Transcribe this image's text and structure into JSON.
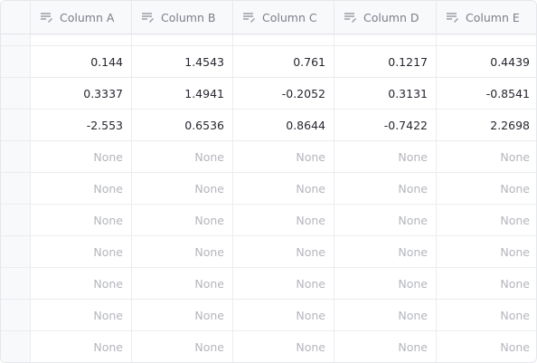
{
  "table": {
    "columns": [
      {
        "label": "Column A",
        "icon": "text-column-icon"
      },
      {
        "label": "Column B",
        "icon": "text-column-icon"
      },
      {
        "label": "Column C",
        "icon": "text-column-icon"
      },
      {
        "label": "Column D",
        "icon": "text-column-icon"
      },
      {
        "label": "Column E",
        "icon": "text-column-icon"
      }
    ],
    "rows": [
      [
        "0.144",
        "1.4543",
        "0.761",
        "0.1217",
        "0.4439"
      ],
      [
        "0.3337",
        "1.4941",
        "-0.2052",
        "0.3131",
        "-0.8541"
      ],
      [
        "-2.553",
        "0.6536",
        "0.8644",
        "-0.7422",
        "2.2698"
      ],
      [
        "None",
        "None",
        "None",
        "None",
        "None"
      ],
      [
        "None",
        "None",
        "None",
        "None",
        "None"
      ],
      [
        "None",
        "None",
        "None",
        "None",
        "None"
      ],
      [
        "None",
        "None",
        "None",
        "None",
        "None"
      ],
      [
        "None",
        "None",
        "None",
        "None",
        "None"
      ],
      [
        "None",
        "None",
        "None",
        "None",
        "None"
      ],
      [
        "None",
        "None",
        "None",
        "None",
        "None"
      ]
    ]
  },
  "colors": {
    "text": "#262730",
    "muted_text": "#b4b6bd",
    "header_text": "#7b7e89",
    "header_bg": "#f8f9fb",
    "grid_line": "#ebecef"
  }
}
